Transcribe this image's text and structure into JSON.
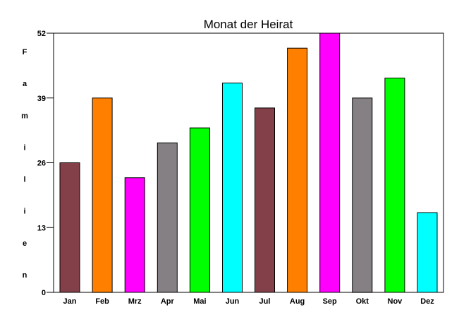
{
  "chart_data": {
    "type": "bar",
    "title": "Monat der Heirat",
    "xlabel": "",
    "ylabel": "Familien",
    "categories": [
      "Jan",
      "Feb",
      "Mrz",
      "Apr",
      "Mai",
      "Jun",
      "Jul",
      "Aug",
      "Sep",
      "Okt",
      "Nov",
      "Dez"
    ],
    "values": [
      26,
      39,
      23,
      30,
      33,
      42,
      37,
      49,
      52,
      39,
      43,
      16
    ],
    "colors": [
      "#844048",
      "#ff8000",
      "#ff00ff",
      "#848084",
      "#00ff00",
      "#00ffff",
      "#844048",
      "#ff8000",
      "#ff00ff",
      "#848084",
      "#00ff00",
      "#00ffff"
    ],
    "ylim": [
      0,
      52
    ],
    "yticks": [
      "0",
      "13",
      "26",
      "39",
      "52"
    ],
    "grid": false,
    "legend": "none"
  }
}
